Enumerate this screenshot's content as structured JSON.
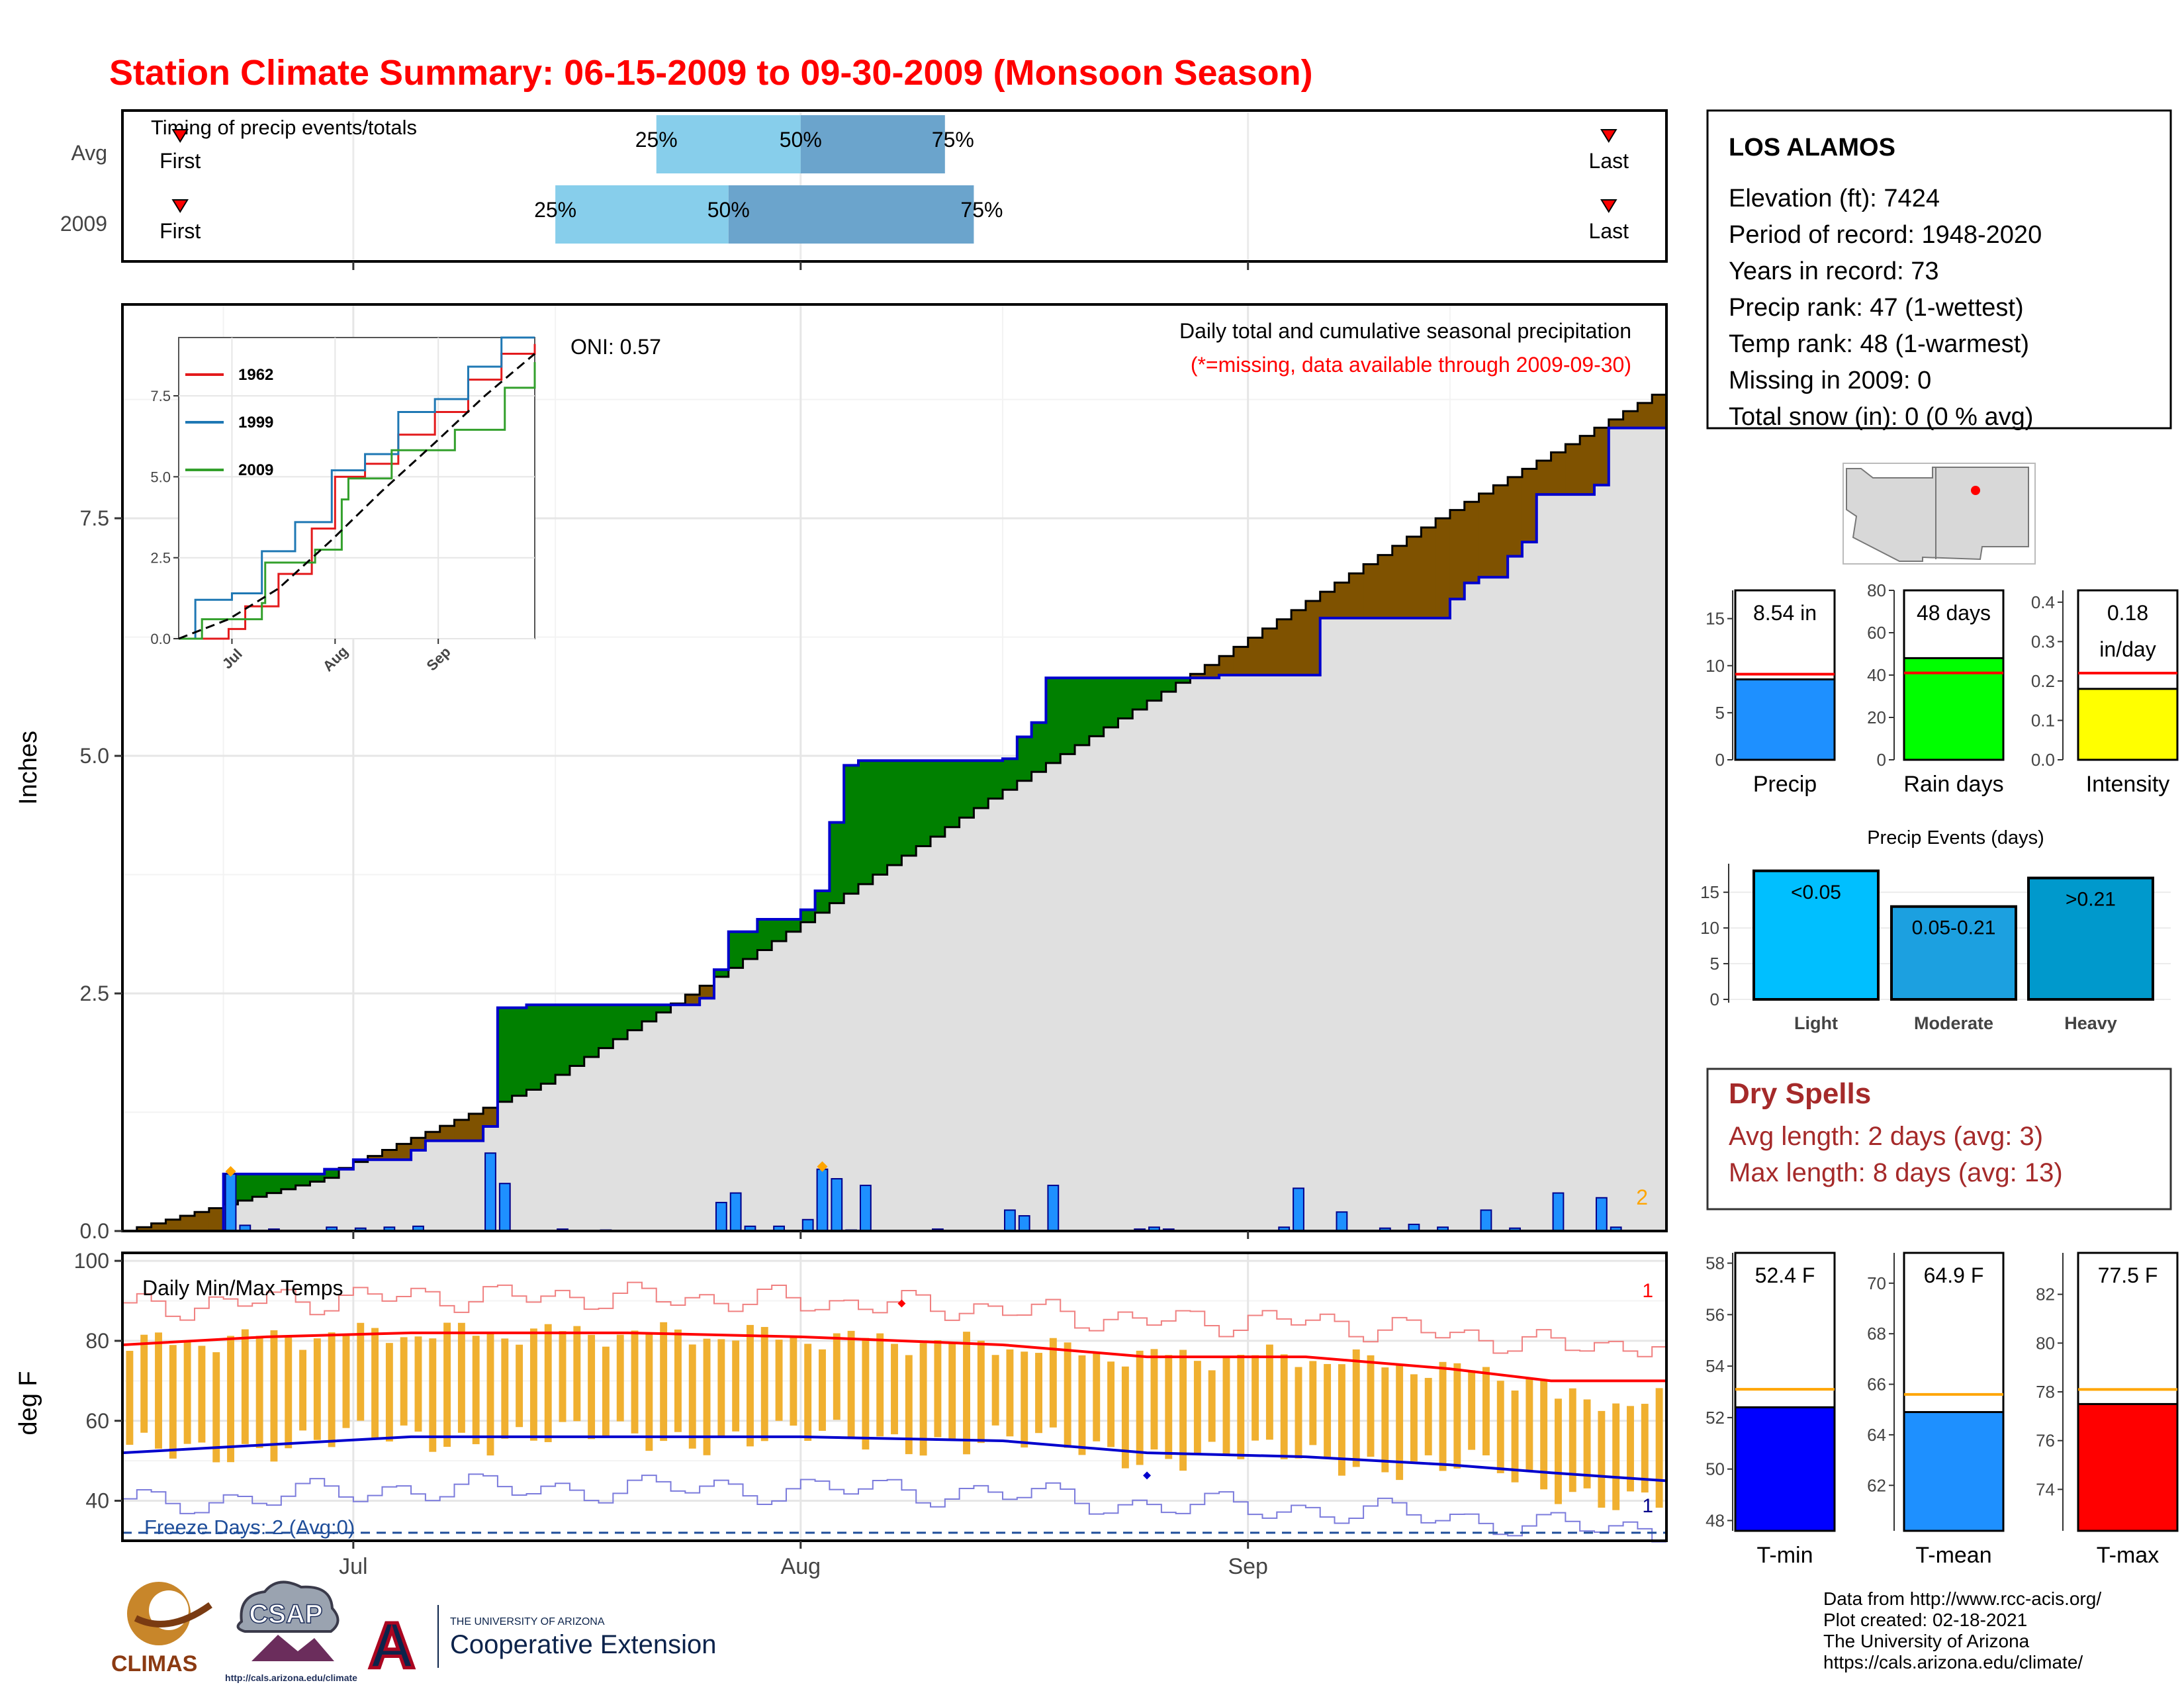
{
  "title": "Station Climate Summary: 06-15-2009 to 09-30-2009 (Monsoon Season)",
  "station": {
    "name": "LOS ALAMOS",
    "lines": [
      "Elevation (ft): 7424",
      "Period of record: 1948-2020",
      "Years in record: 73",
      "Precip rank: 47 (1-wettest)",
      "Temp rank: 48 (1-warmest)",
      "Missing in 2009: 0",
      "Total snow (in): 0 (0 % avg)"
    ]
  },
  "timing": {
    "title": "Timing of precip events/totals",
    "rows": [
      {
        "label": "Avg",
        "first_date": "06-19",
        "last_date": "09-26",
        "q25": "07-22",
        "q50": "08-01",
        "q75": "08-11"
      },
      {
        "label": "2009",
        "first_date": "06-19",
        "last_date": "09-26",
        "q25": "07-15",
        "q50": "07-27",
        "q75": "08-13"
      }
    ],
    "first_label": "First",
    "last_label": "Last",
    "q_labels": [
      "25%",
      "50%",
      "75%"
    ]
  },
  "precip": {
    "ylabel": "Inches",
    "note": "Daily total and cumulative seasonal precipitation",
    "missing_note": "(*=missing, data available through 2009-09-30)",
    "oni": "ONI: 0.57",
    "corner_count": "2",
    "yticks": [
      "0.0",
      "2.5",
      "5.0",
      "7.5"
    ],
    "inset_legend": [
      "1962",
      "1999",
      "2009"
    ],
    "inset_yticks": [
      "0.0",
      "2.5",
      "5.0",
      "7.5"
    ],
    "inset_xticks": [
      "Jul",
      "Aug",
      "Sep"
    ]
  },
  "temps": {
    "title": "Daily Min/Max Temps",
    "ylabel": "deg F",
    "freeze": "Freeze Days: 2 (Avg:0)",
    "yticks": [
      "40",
      "60",
      "80",
      "100"
    ],
    "xticks": [
      "Jul",
      "Aug",
      "Sep"
    ],
    "record_max_count": "1",
    "record_min_count": "1"
  },
  "chart_data": [
    {
      "type": "line",
      "name": "cumulative precipitation",
      "x_start": "2009-06-15",
      "x_end": "2009-09-30",
      "ylim": [
        0,
        9.5
      ],
      "series": [
        {
          "name": "2009 cumulative (in)",
          "points": [
            [
              "06-15",
              0
            ],
            [
              "06-21",
              0
            ],
            [
              "06-22",
              0.6
            ],
            [
              "06-29",
              0.65
            ],
            [
              "07-01",
              0.75
            ],
            [
              "07-05",
              0.85
            ],
            [
              "07-06",
              0.95
            ],
            [
              "07-10",
              1.1
            ],
            [
              "07-11",
              2.35
            ],
            [
              "07-12",
              2.35
            ],
            [
              "07-13",
              2.38
            ],
            [
              "07-25",
              2.45
            ],
            [
              "07-26",
              2.75
            ],
            [
              "07-27",
              3.15
            ],
            [
              "07-29",
              3.28
            ],
            [
              "08-01",
              3.38
            ],
            [
              "08-02",
              3.58
            ],
            [
              "08-03",
              4.3
            ],
            [
              "08-04",
              4.9
            ],
            [
              "08-05",
              4.95
            ],
            [
              "08-15",
              4.97
            ],
            [
              "08-16",
              5.2
            ],
            [
              "08-17",
              5.35
            ],
            [
              "08-18",
              5.82
            ],
            [
              "08-29",
              5.82
            ],
            [
              "08-30",
              5.85
            ],
            [
              "09-05",
              5.85
            ],
            [
              "09-06",
              6.45
            ],
            [
              "09-15",
              6.65
            ],
            [
              "09-16",
              6.82
            ],
            [
              "09-17",
              6.88
            ],
            [
              "09-19",
              7.1
            ],
            [
              "09-20",
              7.25
            ],
            [
              "09-21",
              7.75
            ],
            [
              "09-25",
              7.85
            ],
            [
              "09-26",
              8.45
            ],
            [
              "09-30",
              8.54
            ]
          ]
        },
        {
          "name": "average cumulative (in)",
          "points": [
            [
              "06-15",
              0
            ],
            [
              "06-30",
              0.6
            ],
            [
              "07-15",
              1.55
            ],
            [
              "07-31",
              3.05
            ],
            [
              "08-15",
              4.55
            ],
            [
              "08-31",
              6.05
            ],
            [
              "09-15",
              7.5
            ],
            [
              "09-30",
              8.8
            ]
          ]
        }
      ]
    },
    {
      "type": "bar",
      "name": "daily precipitation (in)",
      "dates": [
        "06-22",
        "06-23",
        "06-25",
        "06-29",
        "07-01",
        "07-03",
        "07-05",
        "07-10",
        "07-11",
        "07-15",
        "07-18",
        "07-26",
        "07-27",
        "07-28",
        "07-30",
        "08-01",
        "08-02",
        "08-03",
        "08-04",
        "08-05",
        "08-10",
        "08-15",
        "08-16",
        "08-18",
        "08-24",
        "08-25",
        "08-26",
        "09-03",
        "09-04",
        "09-07",
        "09-10",
        "09-12",
        "09-14",
        "09-17",
        "09-19",
        "09-22",
        "09-25",
        "09-26"
      ],
      "values": [
        0.6,
        0.06,
        0.02,
        0.04,
        0.03,
        0.04,
        0.05,
        0.82,
        0.5,
        0.02,
        0.01,
        0.3,
        0.4,
        0.05,
        0.05,
        0.12,
        0.65,
        0.55,
        0.01,
        0.48,
        0.02,
        0.22,
        0.16,
        0.48,
        0.02,
        0.04,
        0.02,
        0.04,
        0.45,
        0.2,
        0.03,
        0.07,
        0.04,
        0.22,
        0.03,
        0.4,
        0.35,
        0.04
      ]
    },
    {
      "type": "line",
      "name": "inset cumulative comparison",
      "ylim": [
        0,
        9.5
      ],
      "series": [
        {
          "name": "1962",
          "points": [
            [
              "06-15",
              0
            ],
            [
              "06-30",
              0.3
            ],
            [
              "07-05",
              1.0
            ],
            [
              "07-15",
              2.0
            ],
            [
              "07-25",
              3.4
            ],
            [
              "08-01",
              5.0
            ],
            [
              "08-10",
              5.4
            ],
            [
              "08-20",
              6.3
            ],
            [
              "08-31",
              7.0
            ],
            [
              "09-10",
              8.0
            ],
            [
              "09-20",
              8.8
            ],
            [
              "09-30",
              9.1
            ]
          ]
        },
        {
          "name": "1999",
          "points": [
            [
              "06-15",
              0
            ],
            [
              "06-20",
              1.2
            ],
            [
              "07-01",
              1.4
            ],
            [
              "07-10",
              2.7
            ],
            [
              "07-20",
              3.6
            ],
            [
              "07-31",
              5.2
            ],
            [
              "08-10",
              5.7
            ],
            [
              "08-20",
              7.0
            ],
            [
              "08-31",
              7.4
            ],
            [
              "09-10",
              8.4
            ],
            [
              "09-20",
              9.4
            ],
            [
              "09-30",
              9.6
            ]
          ]
        },
        {
          "name": "2009",
          "points": [
            [
              "06-15",
              0
            ],
            [
              "06-22",
              0.6
            ],
            [
              "07-10",
              1.1
            ],
            [
              "07-11",
              2.35
            ],
            [
              "07-26",
              2.75
            ],
            [
              "08-03",
              4.3
            ],
            [
              "08-05",
              4.95
            ],
            [
              "08-18",
              5.82
            ],
            [
              "09-06",
              6.45
            ],
            [
              "09-21",
              7.75
            ],
            [
              "09-30",
              8.54
            ]
          ]
        },
        {
          "name": "average",
          "points": [
            [
              "06-15",
              0
            ],
            [
              "06-30",
              0.6
            ],
            [
              "07-15",
              1.55
            ],
            [
              "07-31",
              3.05
            ],
            [
              "08-15",
              4.55
            ],
            [
              "08-31",
              6.05
            ],
            [
              "09-15",
              7.5
            ],
            [
              "09-30",
              8.8
            ]
          ]
        }
      ]
    },
    {
      "type": "bar",
      "name": "summary precip",
      "categories": [
        "Precip",
        "Rain days",
        "Intensity"
      ],
      "values": [
        8.54,
        48,
        0.18
      ],
      "averages": [
        9.1,
        41,
        0.22
      ],
      "labels": [
        "8.54 in",
        "48 days",
        "0.18 in/day"
      ],
      "ylims": [
        [
          0,
          18
        ],
        [
          0,
          80
        ],
        [
          0,
          0.43
        ]
      ],
      "yticks": [
        [
          "0",
          "5",
          "10",
          "15"
        ],
        [
          "0",
          "20",
          "40",
          "60",
          "80"
        ],
        [
          "0.0",
          "0.1",
          "0.2",
          "0.3",
          "0.4"
        ]
      ],
      "colors": [
        "#1e90ff",
        "#00ff00",
        "#ffff00"
      ]
    },
    {
      "type": "bar",
      "name": "precip events",
      "title": "Precip Events (days)",
      "categories": [
        "Light",
        "Moderate",
        "Heavy"
      ],
      "bar_labels": [
        "<0.05",
        "0.05-0.21",
        ">0.21"
      ],
      "values": [
        18,
        13,
        17
      ],
      "ylim": [
        0,
        19
      ],
      "yticks": [
        "0",
        "5",
        "10",
        "15"
      ],
      "colors": [
        "#00bfff",
        "#1ca0e0",
        "#0099cc"
      ]
    },
    {
      "type": "bar",
      "name": "summary temps",
      "categories": [
        "T-min",
        "T-mean",
        "T-max"
      ],
      "values": [
        52.4,
        64.9,
        77.5
      ],
      "averages": [
        53.1,
        65.6,
        78.1
      ],
      "labels": [
        "52.4 F",
        "64.9 F",
        "77.5 F"
      ],
      "ylims": [
        [
          47.6,
          58.4
        ],
        [
          60.2,
          71.2
        ],
        [
          72.3,
          83.7
        ]
      ],
      "yticks": [
        [
          "48",
          "50",
          "52",
          "54",
          "56",
          "58"
        ],
        [
          "62",
          "64",
          "66",
          "68",
          "70"
        ],
        [
          "74",
          "76",
          "78",
          "80",
          "82"
        ]
      ],
      "colors": [
        "#0000ff",
        "#1e90ff",
        "#ff0000"
      ]
    },
    {
      "type": "line",
      "name": "daily temperatures (F)",
      "ylim": [
        30,
        102
      ],
      "series": [
        {
          "name": "avg max",
          "points": [
            [
              "06-15",
              79
            ],
            [
              "06-25",
              81
            ],
            [
              "07-05",
              82
            ],
            [
              "07-20",
              82
            ],
            [
              "08-01",
              81
            ],
            [
              "08-15",
              79
            ],
            [
              "08-25",
              76
            ],
            [
              "09-05",
              76
            ],
            [
              "09-15",
              73
            ],
            [
              "09-22",
              70
            ],
            [
              "09-30",
              70
            ]
          ]
        },
        {
          "name": "avg min",
          "points": [
            [
              "06-15",
              52
            ],
            [
              "06-25",
              54
            ],
            [
              "07-05",
              56
            ],
            [
              "07-20",
              56
            ],
            [
              "08-01",
              56
            ],
            [
              "08-15",
              55
            ],
            [
              "08-25",
              52
            ],
            [
              "09-05",
              51
            ],
            [
              "09-15",
              49
            ],
            [
              "09-22",
              47
            ],
            [
              "09-30",
              45
            ]
          ]
        }
      ]
    }
  ],
  "colors": {
    "title": "#ff0000",
    "above": "#008000",
    "below": "#7f5200",
    "area": "#e0e0e0",
    "bar": "#1e90ff",
    "tbar": "#f0b030",
    "dryspell": "#a52a2a"
  },
  "dry_spells": {
    "title": "Dry Spells",
    "avg": "Avg length: 2 days (avg: 3)",
    "max": "Max length: 8 days (avg: 13)"
  },
  "credits": [
    "Data from http://www.rcc-acis.org/",
    "Plot created: 02-18-2021",
    "The University of Arizona",
    "https://cals.arizona.edu/climate/"
  ],
  "logos": {
    "climas": "CLIMAS",
    "csap": "CSAP",
    "csap_url": "http://cals.arizona.edu/climate",
    "ua_a": "A",
    "ua_small": "THE UNIVERSITY OF ARIZONA",
    "ua_big": "Cooperative Extension"
  }
}
